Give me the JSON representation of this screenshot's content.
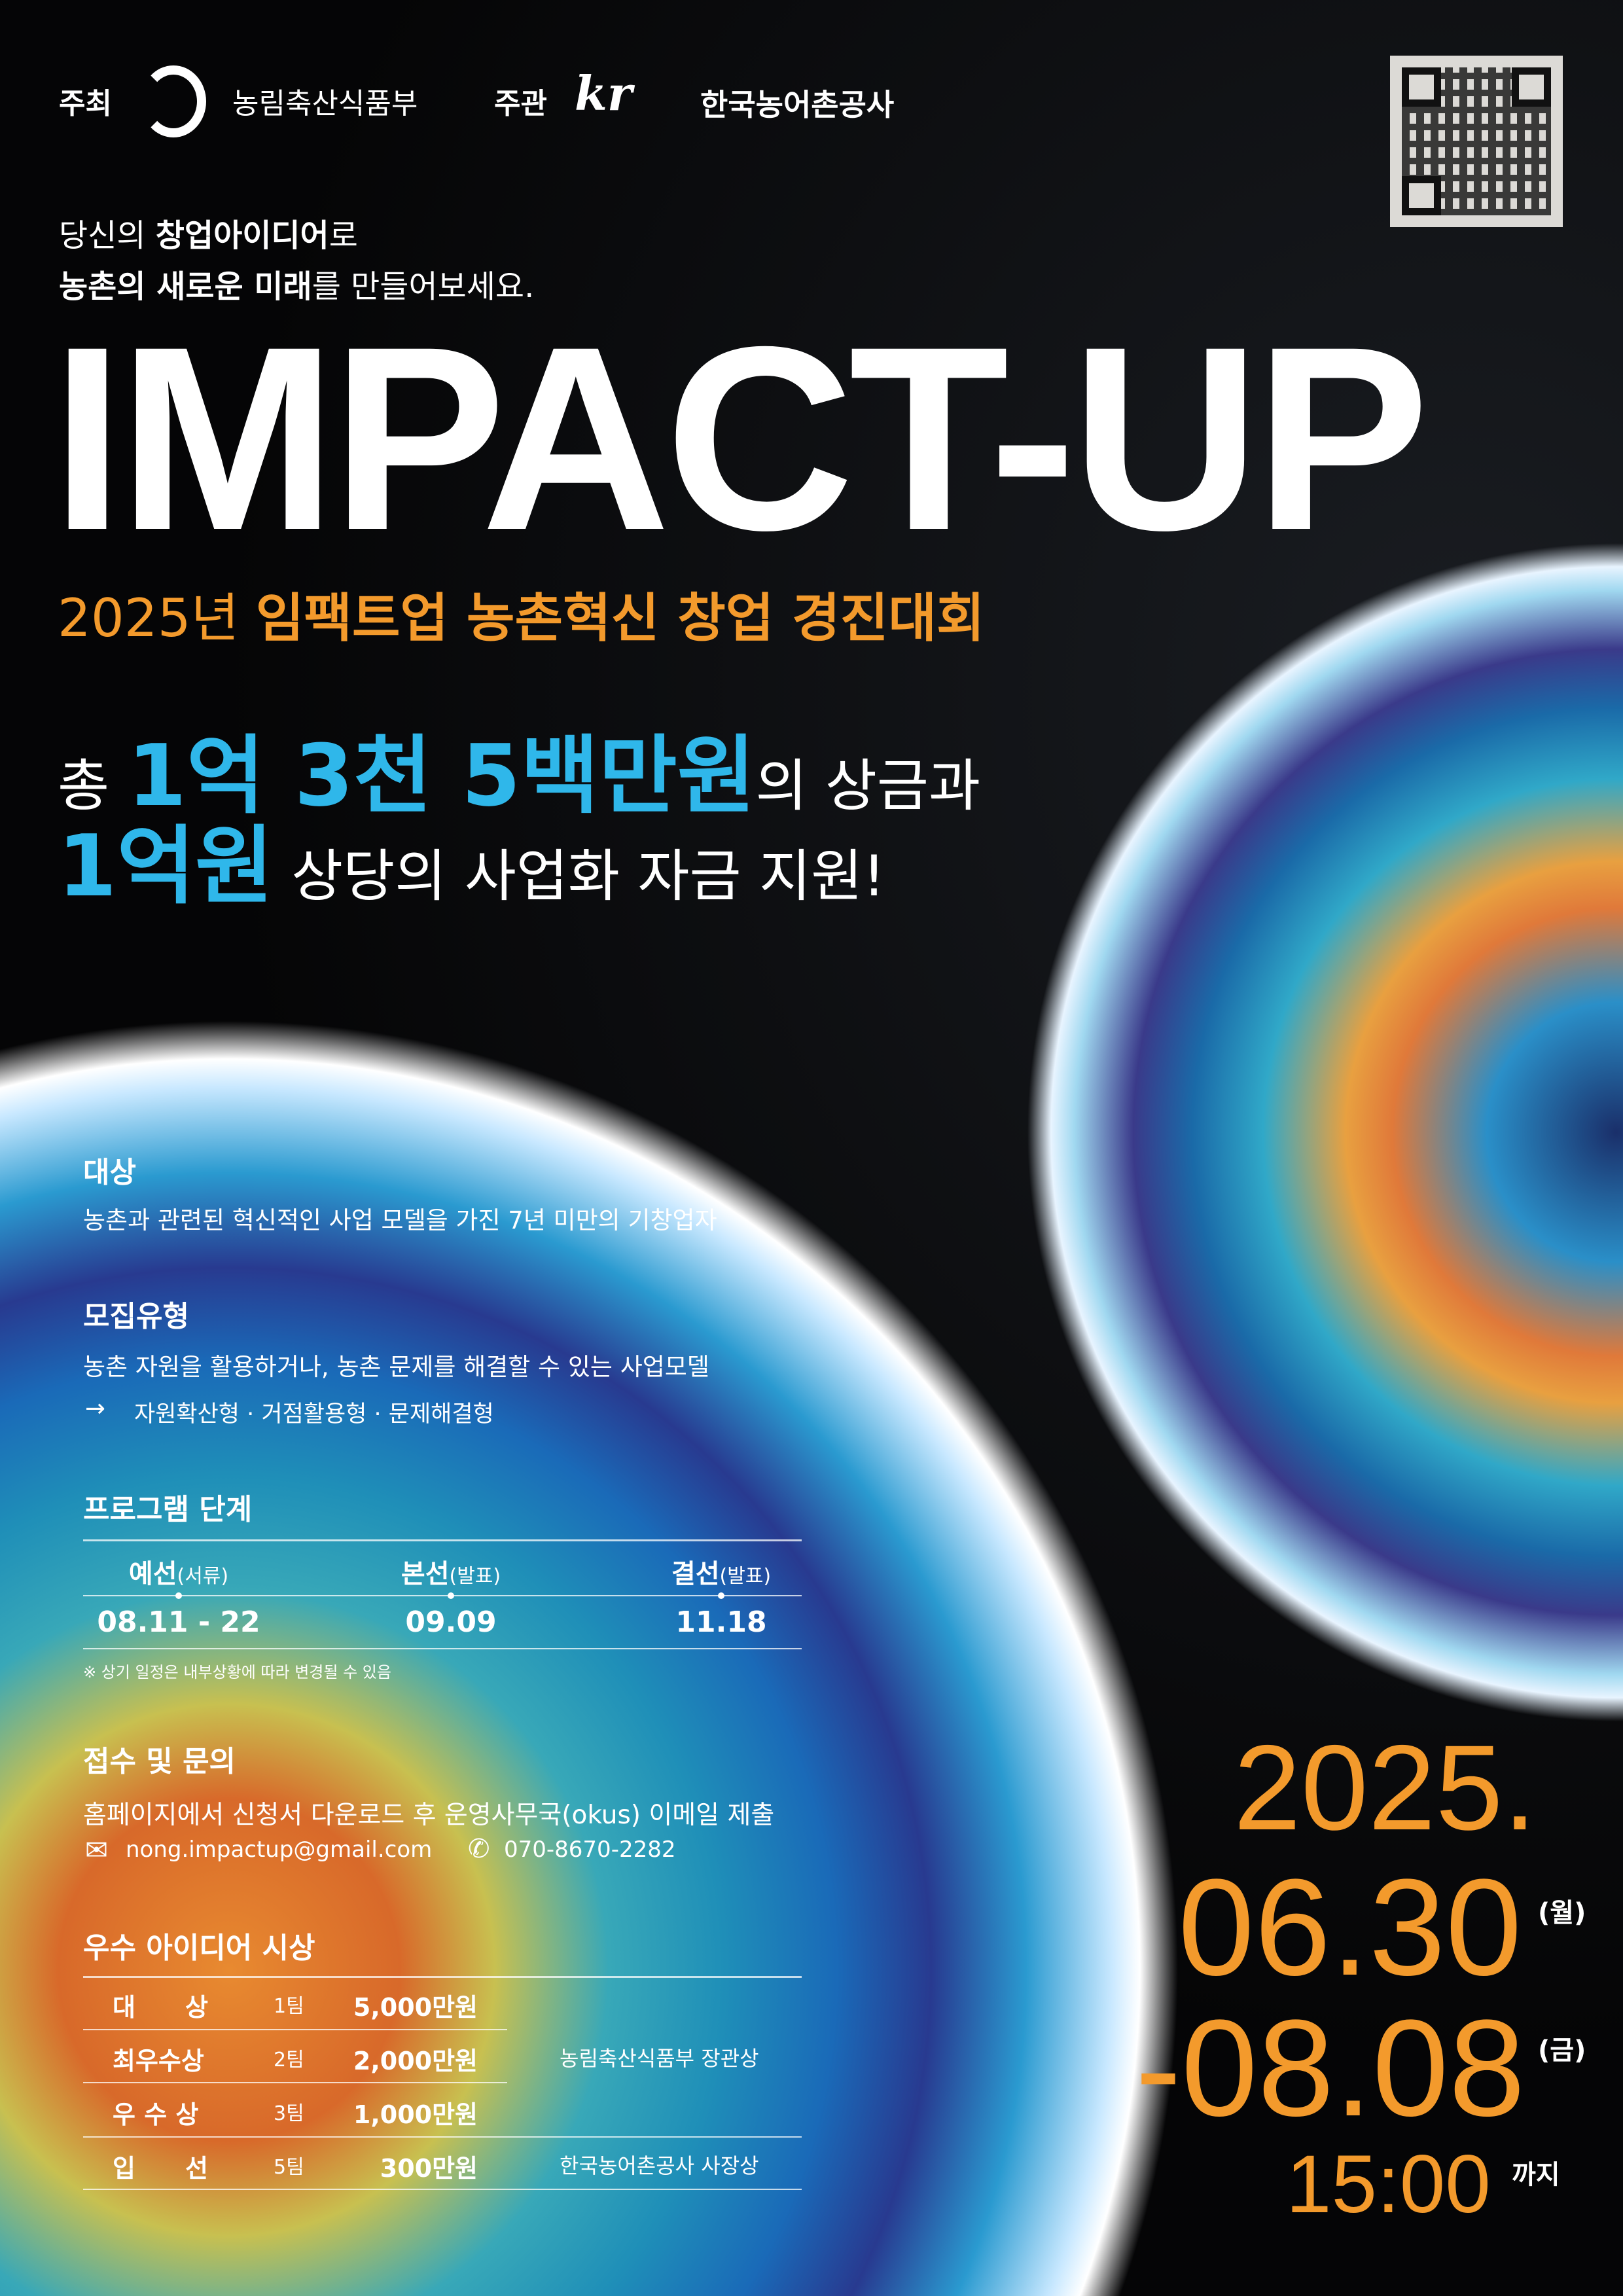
{
  "header": {
    "host_label": "주최",
    "host_org": "농림축산식품부",
    "organizer_label": "주관",
    "organizer_logo": "kr Clean & Green",
    "organizer_org": "한국농어촌공사"
  },
  "tagline": {
    "line1_a": "당신의 ",
    "line1_b": "창업아이디어",
    "line1_c": "로",
    "line2_a": "농촌의 새로운 미래",
    "line2_b": "를 만들어보세요."
  },
  "title": "IMPACT-UP",
  "subtitle": {
    "year": "2025년 ",
    "name": "임팩트업 농촌혁신 창업 경진대회"
  },
  "prize": {
    "l1_a": "총 ",
    "l1_b": "1억 3천 5백만원",
    "l1_c": "의 상금과",
    "l2_a": "1억원",
    "l2_b": " 상당의 사업화 자금 지원!"
  },
  "target": {
    "heading": "대상",
    "text": "농촌과 관련된 혁신적인 사업 모델을 가진 7년 미만의 기창업자"
  },
  "types": {
    "heading": "모집유형",
    "text": "농촌 자원을 활용하거나, 농촌 문제를 해결할 수 있는 사업모델",
    "arrow": "→",
    "list": "자원확산형 · 거점활용형 · 문제해결형"
  },
  "program": {
    "heading": "프로그램 단계",
    "stages": [
      {
        "name": "예선",
        "sub": "(서류)",
        "date": "08.11 - 22"
      },
      {
        "name": "본선",
        "sub": "(발표)",
        "date": "09.09"
      },
      {
        "name": "결선",
        "sub": "(발표)",
        "date": "11.18"
      }
    ],
    "note": "※ 상기 일정은 내부상황에 따라 변경될 수 있음"
  },
  "contact": {
    "heading": "접수 및 문의",
    "text": "홈페이지에서 신청서 다운로드 후 운영사무국(okus) 이메일 제출",
    "email": "nong.impactup@gmail.com",
    "phone": "070-8670-2282"
  },
  "awards": {
    "heading": "우수 아이디어 시상",
    "rows": [
      {
        "name": "대　　상",
        "teams": "1팀",
        "amount": "5,000만원"
      },
      {
        "name": "최우수상",
        "teams": "2팀",
        "amount": "2,000만원"
      },
      {
        "name": "우 수 상",
        "teams": "3팀",
        "amount": "1,000만원"
      },
      {
        "name": "입　　선",
        "teams": "5팀",
        "amount": "300만원"
      }
    ],
    "award_a": "농림축산식품부 장관상",
    "award_b": "한국농어촌공사 사장상"
  },
  "deadline": {
    "year": "2025.",
    "start": "06.30",
    "start_day": "(월)",
    "end": "-08.08",
    "end_day": "(금)",
    "time": "15:00",
    "until": "까지"
  },
  "colors": {
    "accent_orange": "#f39a2c",
    "accent_cyan": "#2fb7ea",
    "background": "#050506"
  }
}
